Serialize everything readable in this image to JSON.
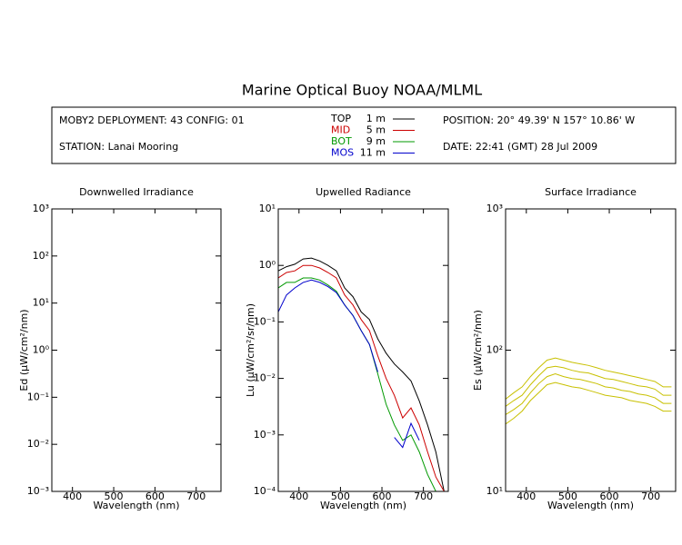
{
  "header": {
    "title": "Marine Optical Buoy NOAA/MLML",
    "deployment": "MOBY2 DEPLOYMENT: 43 CONFIG: 01",
    "station": "STATION: Lanai Mooring",
    "position": "POSITION: 20° 49.39' N   157° 10.86' W",
    "date": "DATE: 22:41 (GMT) 28 Jul 2009"
  },
  "chart_data": [
    {
      "type": "line",
      "title": "Downwelled Irradiance",
      "xlabel": "Wavelength (nm)",
      "ylabel": "Ed  (μW/cm²/nm)",
      "xlim": [
        350,
        760
      ],
      "xticks": [
        400,
        500,
        600,
        700
      ],
      "ylim": [
        0.001,
        1000
      ],
      "log_y": true,
      "yticks": [
        {
          "value": 0.001,
          "label": "10⁻³"
        },
        {
          "value": 0.01,
          "label": "10⁻²"
        },
        {
          "value": 0.1,
          "label": "10⁻¹"
        },
        {
          "value": 1,
          "label": "10⁰"
        },
        {
          "value": 10,
          "label": "10¹"
        },
        {
          "value": 100,
          "label": "10²"
        },
        {
          "value": 1000,
          "label": "10³"
        }
      ],
      "series": []
    },
    {
      "type": "line",
      "title": "Upwelled Radiance",
      "xlabel": "Wavelength (nm)",
      "ylabel": "Lu  (μW/cm²/sr/nm)",
      "xlim": [
        350,
        760
      ],
      "xticks": [
        400,
        500,
        600,
        700
      ],
      "ylim": [
        0.0001,
        10
      ],
      "log_y": true,
      "yticks": [
        {
          "value": 0.0001,
          "label": "10⁻⁴"
        },
        {
          "value": 0.001,
          "label": "10⁻³"
        },
        {
          "value": 0.01,
          "label": "10⁻²"
        },
        {
          "value": 0.1,
          "label": "10⁻¹"
        },
        {
          "value": 1,
          "label": "10⁰"
        },
        {
          "value": 10,
          "label": "10¹"
        }
      ],
      "x": [
        350,
        370,
        390,
        410,
        430,
        450,
        470,
        490,
        510,
        530,
        550,
        570,
        590,
        610,
        630,
        650,
        670,
        690,
        710,
        730,
        750
      ],
      "series": [
        {
          "name": "TOP",
          "depth": "1 m",
          "color": "#000000",
          "values": [
            0.8,
            0.95,
            1.05,
            1.3,
            1.35,
            1.2,
            1.0,
            0.8,
            0.4,
            0.28,
            0.15,
            0.11,
            0.05,
            0.028,
            0.018,
            0.013,
            0.009,
            0.004,
            0.0015,
            0.0005,
            0.0001
          ]
        },
        {
          "name": "MID",
          "depth": "5 m",
          "color": "#cc0000",
          "values": [
            0.6,
            0.75,
            0.8,
            1.0,
            1.0,
            0.9,
            0.75,
            0.6,
            0.3,
            0.2,
            0.11,
            0.07,
            0.025,
            0.01,
            0.005,
            0.002,
            0.003,
            0.0015,
            0.0005,
            0.00018,
            0.0001
          ]
        },
        {
          "name": "BOT",
          "depth": "9 m",
          "color": "#009900",
          "values": [
            0.4,
            0.5,
            0.5,
            0.6,
            0.6,
            0.55,
            0.45,
            0.35,
            0.2,
            0.13,
            0.07,
            0.04,
            0.012,
            0.0035,
            0.0015,
            0.0008,
            0.001,
            0.0005,
            0.0002,
            0.0001,
            8e-05
          ]
        },
        {
          "name": "MOS",
          "depth": "11 m",
          "color": "#0000cc",
          "values": [
            0.15,
            0.3,
            0.4,
            0.5,
            0.55,
            0.5,
            0.42,
            0.33,
            0.2,
            0.13,
            0.07,
            0.04,
            0.013,
            null,
            0.0009,
            0.0006,
            0.0016,
            0.0008,
            null,
            null,
            null
          ]
        }
      ]
    },
    {
      "type": "line",
      "title": "Surface Irradiance",
      "xlabel": "Wavelength (nm)",
      "ylabel": "Es  (μW/cm²/nm)",
      "xlim": [
        350,
        760
      ],
      "xticks": [
        400,
        500,
        600,
        700
      ],
      "ylim": [
        10,
        1000
      ],
      "log_y": true,
      "yticks": [
        {
          "value": 10,
          "label": "10¹"
        },
        {
          "value": 100,
          "label": "10²"
        },
        {
          "value": 1000,
          "label": "10³"
        }
      ],
      "x": [
        350,
        370,
        390,
        410,
        430,
        450,
        470,
        490,
        510,
        530,
        550,
        570,
        590,
        610,
        630,
        650,
        670,
        690,
        710,
        730,
        750
      ],
      "series": [
        {
          "color": "#c8c000",
          "values": [
            45,
            50,
            55,
            65,
            75,
            85,
            88,
            85,
            82,
            80,
            78,
            75,
            72,
            70,
            68,
            66,
            64,
            62,
            60,
            55,
            55
          ]
        },
        {
          "color": "#c8c000",
          "values": [
            40,
            44,
            48,
            57,
            66,
            75,
            77,
            75,
            72,
            70,
            69,
            66,
            63,
            62,
            60,
            58,
            56,
            55,
            53,
            48,
            48
          ]
        },
        {
          "color": "#c8c000",
          "values": [
            35,
            38,
            42,
            50,
            58,
            65,
            68,
            65,
            63,
            62,
            60,
            58,
            55,
            54,
            52,
            51,
            49,
            48,
            46,
            42,
            42
          ]
        },
        {
          "color": "#c8c000",
          "values": [
            30,
            33,
            37,
            44,
            50,
            57,
            59,
            57,
            55,
            54,
            52,
            50,
            48,
            47,
            46,
            44,
            43,
            42,
            40,
            37,
            37
          ]
        }
      ]
    }
  ]
}
